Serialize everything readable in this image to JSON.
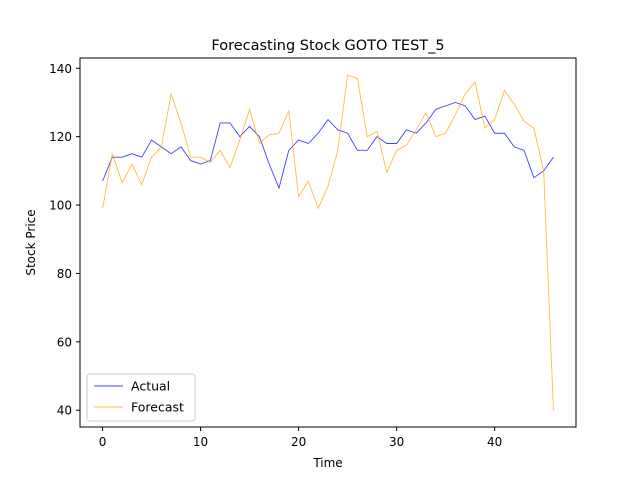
{
  "chart_data": {
    "type": "line",
    "title": "Forecasting Stock GOTO TEST_5",
    "xlabel": "Time",
    "ylabel": "Stock Price",
    "xlim": [
      -2.3,
      48.3
    ],
    "ylim": [
      35.1,
      143.0
    ],
    "xticks": [
      0,
      10,
      20,
      30,
      40
    ],
    "yticks": [
      40,
      60,
      80,
      100,
      120,
      140
    ],
    "grid": false,
    "legend_position": "lower-left",
    "x": [
      0,
      1,
      2,
      3,
      4,
      5,
      6,
      7,
      8,
      9,
      10,
      11,
      12,
      13,
      14,
      15,
      16,
      17,
      18,
      19,
      20,
      21,
      22,
      23,
      24,
      25,
      26,
      27,
      28,
      29,
      30,
      31,
      32,
      33,
      34,
      35,
      36,
      37,
      38,
      39,
      40,
      41,
      42,
      43,
      44,
      45,
      46
    ],
    "series": [
      {
        "name": "Actual",
        "color": "#0000ff",
        "values": [
          107,
          114,
          114,
          115,
          114,
          119,
          117,
          115,
          117,
          113,
          112,
          113,
          124,
          124,
          120,
          123,
          120,
          112,
          105,
          116,
          119,
          118,
          121,
          125,
          122,
          121,
          116,
          116,
          120,
          118,
          118,
          122,
          121,
          124,
          128,
          129,
          130,
          129,
          125,
          126,
          121,
          121,
          117,
          116,
          108,
          110,
          114
        ]
      },
      {
        "name": "Forecast",
        "color": "#ffa500",
        "values": [
          99,
          115,
          106.5,
          112,
          106,
          114,
          117,
          132.5,
          124,
          114,
          114,
          112.5,
          116,
          111,
          119,
          128,
          118,
          120.5,
          121,
          127.5,
          102.5,
          107,
          99,
          105.5,
          116,
          138,
          137,
          120,
          121.5,
          109.5,
          116,
          117.5,
          122,
          127,
          120,
          121,
          126.5,
          132.5,
          136,
          122.5,
          125,
          133.5,
          129.5,
          124.5,
          122.5,
          110,
          40
        ]
      }
    ]
  }
}
